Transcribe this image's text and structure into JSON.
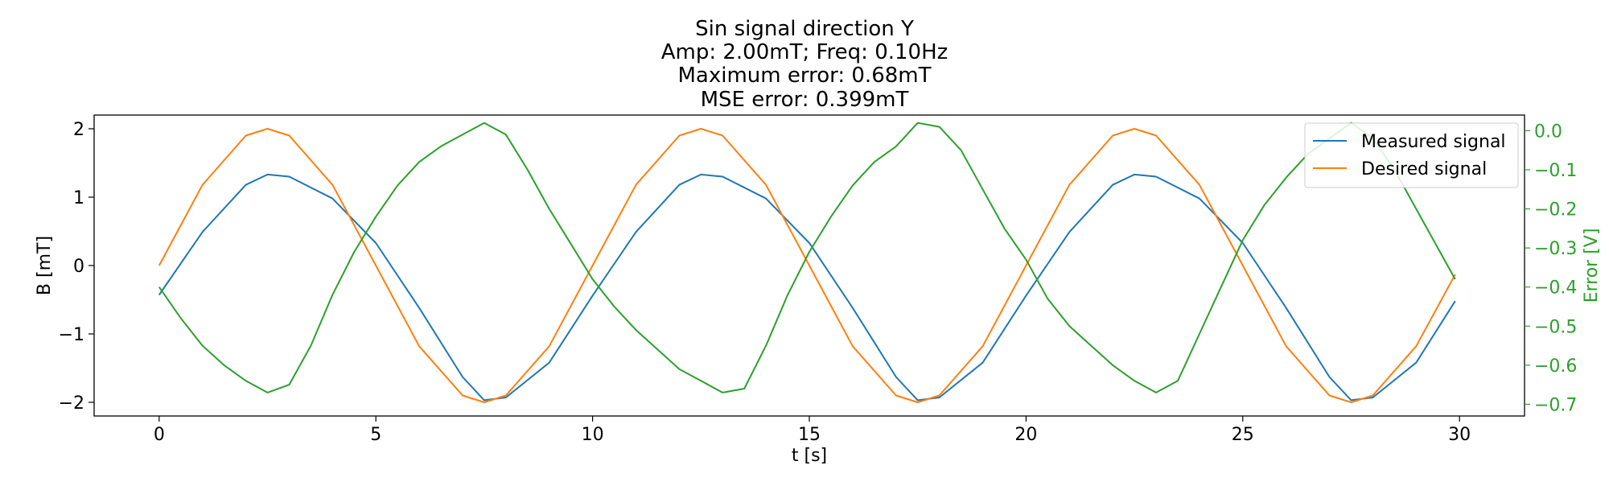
{
  "chart_data": {
    "type": "line",
    "title": "Sin signal direction Y",
    "subtitles": [
      "Amp: 2.00mT; Freq: 0.10Hz",
      "Maximum error: 0.68mT",
      "MSE error: 0.399mT"
    ],
    "xlabel": "t [s]",
    "ylabel": "B [mT]",
    "ylabel_right": "Error [V]",
    "xlim": [
      -1.5,
      31.5
    ],
    "ylim": [
      -2.2,
      2.2
    ],
    "ylim_right": [
      -0.73,
      0.04
    ],
    "x_ticks": [
      0,
      5,
      10,
      15,
      20,
      25,
      30
    ],
    "x_tick_labels": [
      "0",
      "5",
      "10",
      "15",
      "20",
      "25",
      "30"
    ],
    "y_ticks": [
      -2,
      -1,
      0,
      1,
      2
    ],
    "y_tick_labels": [
      "−2",
      "−1",
      "0",
      "1",
      "2"
    ],
    "y_right_ticks": [
      0.0,
      -0.1,
      -0.2,
      -0.3,
      -0.4,
      -0.5,
      -0.6,
      -0.7
    ],
    "y_right_tick_labels": [
      "0.0",
      "−0.1",
      "−0.2",
      "−0.3",
      "−0.4",
      "−0.5",
      "−0.6",
      "−0.7"
    ],
    "legend_position": "top-right",
    "grid": false,
    "series": [
      {
        "name": "Measured signal",
        "color": "#1f77b4",
        "axis": "left",
        "x": [
          0,
          1,
          2,
          2.5,
          3,
          4,
          5,
          6,
          7,
          7.5,
          8,
          9,
          10,
          11,
          12,
          12.5,
          13,
          14,
          15,
          16,
          17,
          17.5,
          18,
          19,
          20,
          21,
          22,
          22.5,
          23,
          24,
          25,
          26,
          27,
          27.5,
          28,
          29,
          29.9
        ],
        "values": [
          -0.43,
          0.49,
          1.18,
          1.33,
          1.3,
          0.98,
          0.33,
          -0.62,
          -1.63,
          -1.97,
          -1.93,
          -1.42,
          -0.44,
          0.49,
          1.18,
          1.33,
          1.3,
          0.98,
          0.33,
          -0.62,
          -1.63,
          -1.97,
          -1.93,
          -1.42,
          -0.44,
          0.49,
          1.18,
          1.33,
          1.3,
          0.98,
          0.33,
          -0.62,
          -1.63,
          -1.97,
          -1.93,
          -1.42,
          -0.52
        ]
      },
      {
        "name": "Desired signal",
        "color": "#ff7f0e",
        "axis": "left",
        "x": [
          0,
          1,
          2,
          2.5,
          3,
          4,
          5,
          6,
          7,
          7.5,
          8,
          9,
          10,
          11,
          12,
          12.5,
          13,
          14,
          15,
          16,
          17,
          17.5,
          18,
          19,
          20,
          21,
          22,
          22.5,
          23,
          24,
          25,
          26,
          27,
          27.5,
          28,
          29,
          29.9
        ],
        "values": [
          0,
          1.18,
          1.9,
          2.0,
          1.9,
          1.18,
          0,
          -1.18,
          -1.9,
          -2.0,
          -1.9,
          -1.18,
          0,
          1.18,
          1.9,
          2.0,
          1.9,
          1.18,
          0,
          -1.18,
          -1.9,
          -2.0,
          -1.9,
          -1.18,
          0,
          1.18,
          1.9,
          2.0,
          1.9,
          1.18,
          0,
          -1.18,
          -1.9,
          -2.0,
          -1.9,
          -1.18,
          -0.13
        ]
      },
      {
        "name": "",
        "color": "#2ca02c",
        "axis": "right",
        "x": [
          0,
          0.5,
          1,
          1.5,
          2,
          2.5,
          3,
          3.5,
          4,
          4.5,
          5,
          5.5,
          6,
          6.5,
          7,
          7.5,
          8,
          8.5,
          9,
          9.5,
          10,
          10.5,
          11,
          11.5,
          12,
          12.5,
          13,
          13.5,
          14,
          14.5,
          15,
          15.5,
          16,
          16.5,
          17,
          17.5,
          18,
          18.5,
          19,
          19.5,
          20,
          20.5,
          21,
          21.5,
          22,
          22.5,
          23,
          23.5,
          24,
          24.5,
          25,
          25.5,
          26,
          26.5,
          27,
          27.5,
          28,
          28.5,
          29,
          29.5,
          29.9
        ],
        "values": [
          -0.4,
          -0.48,
          -0.55,
          -0.6,
          -0.64,
          -0.67,
          -0.65,
          -0.55,
          -0.42,
          -0.31,
          -0.22,
          -0.14,
          -0.08,
          -0.04,
          -0.01,
          0.02,
          -0.01,
          -0.1,
          -0.2,
          -0.29,
          -0.38,
          -0.45,
          -0.51,
          -0.56,
          -0.61,
          -0.64,
          -0.67,
          -0.66,
          -0.55,
          -0.42,
          -0.31,
          -0.22,
          -0.14,
          -0.08,
          -0.04,
          0.02,
          0.01,
          -0.05,
          -0.15,
          -0.25,
          -0.33,
          -0.43,
          -0.5,
          -0.55,
          -0.6,
          -0.64,
          -0.67,
          -0.64,
          -0.52,
          -0.4,
          -0.28,
          -0.19,
          -0.12,
          -0.06,
          -0.02,
          0.02,
          -0.02,
          -0.1,
          -0.2,
          -0.3,
          -0.38
        ]
      }
    ]
  }
}
